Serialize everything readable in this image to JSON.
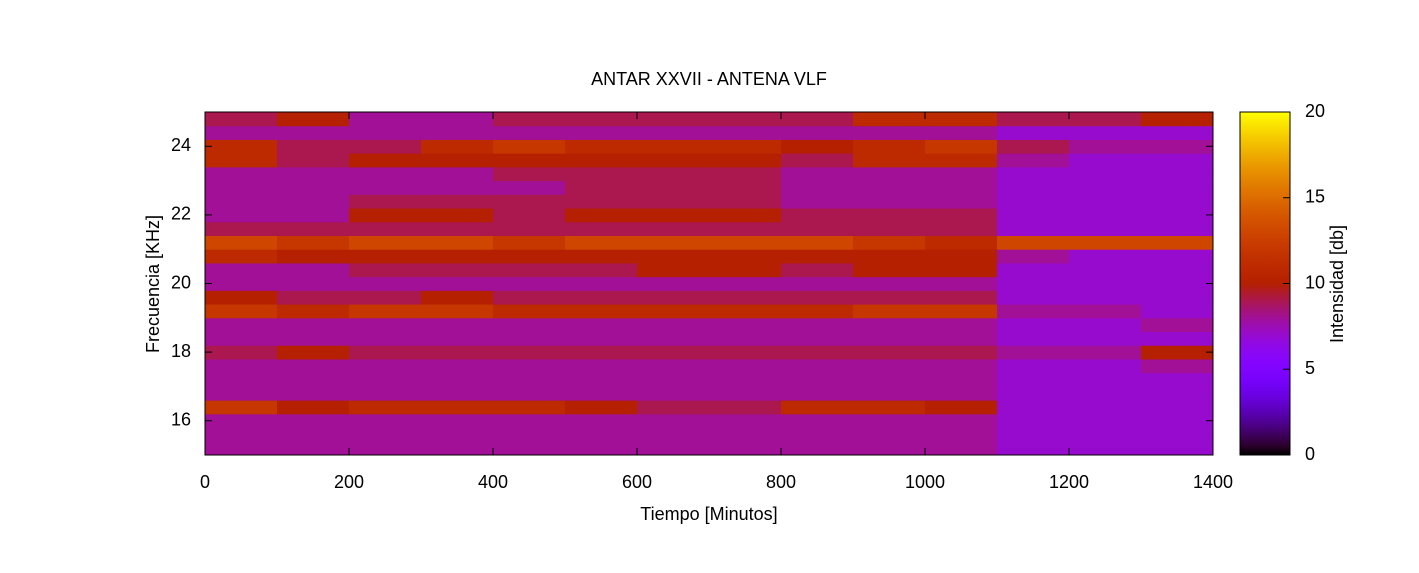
{
  "chart_data": {
    "type": "heatmap",
    "title": "ANTAR XXVII - ANTENA VLF",
    "xlabel": "Tiempo [Minutos]",
    "ylabel": "Frecuencia [KHz]",
    "zlabel": "Intensidad [db]",
    "colormap": "gnuplot",
    "xlim": [
      0,
      1400
    ],
    "xticks": [
      0,
      200,
      400,
      600,
      800,
      1000,
      1200,
      1400
    ],
    "ylim": [
      15,
      25
    ],
    "yticks": [
      16,
      18,
      20,
      22,
      24
    ],
    "zlim": [
      0,
      20
    ],
    "zticks": [
      0,
      5,
      10,
      15,
      20
    ],
    "x": [
      50,
      150,
      250,
      350,
      450,
      550,
      650,
      750,
      850,
      950,
      1050,
      1150,
      1250,
      1350
    ],
    "y": [
      15.2,
      15.6,
      16.0,
      16.4,
      16.8,
      17.2,
      17.6,
      18.0,
      18.4,
      18.8,
      19.2,
      19.6,
      20.0,
      20.4,
      20.8,
      21.2,
      21.6,
      22.0,
      22.4,
      22.8,
      23.2,
      23.6,
      24.0,
      24.4,
      24.8
    ],
    "values": [
      [
        8,
        8,
        8,
        8,
        8,
        8,
        8,
        8,
        8,
        8,
        8,
        7,
        7,
        7
      ],
      [
        8,
        8,
        8,
        8,
        8,
        8,
        8,
        8,
        8,
        8,
        8,
        7,
        7,
        7
      ],
      [
        8,
        8,
        8,
        8,
        8,
        8,
        8,
        8,
        8,
        8,
        8,
        7,
        7,
        7
      ],
      [
        12,
        10,
        11,
        11,
        11,
        10,
        9,
        9,
        11,
        11,
        10,
        7,
        7,
        7
      ],
      [
        8,
        8,
        8,
        8,
        8,
        8,
        8,
        8,
        8,
        8,
        8,
        7,
        7,
        7
      ],
      [
        8,
        8,
        8,
        8,
        8,
        8,
        8,
        8,
        8,
        8,
        8,
        7,
        7,
        7
      ],
      [
        8,
        8,
        8,
        8,
        8,
        8,
        8,
        8,
        8,
        8,
        8,
        7,
        7,
        8
      ],
      [
        9,
        10,
        9,
        9,
        9,
        9,
        9,
        9,
        9,
        9,
        9,
        8,
        8,
        10
      ],
      [
        8,
        8,
        8,
        8,
        8,
        8,
        8,
        8,
        8,
        8,
        8,
        7,
        7,
        7
      ],
      [
        8,
        8,
        8,
        8,
        8,
        8,
        8,
        8,
        8,
        8,
        8,
        7,
        7,
        8
      ],
      [
        12,
        11,
        12,
        12,
        11,
        11,
        11,
        11,
        11,
        12,
        12,
        8,
        8,
        7
      ],
      [
        10,
        9,
        9,
        10,
        9,
        9,
        9,
        9,
        9,
        9,
        9,
        7,
        7,
        7
      ],
      [
        8,
        8,
        8,
        8,
        8,
        8,
        8,
        8,
        8,
        8,
        8,
        7,
        7,
        7
      ],
      [
        8,
        8,
        9,
        9,
        9,
        9,
        10,
        10,
        9,
        10,
        10,
        7,
        7,
        7
      ],
      [
        11,
        10,
        10,
        10,
        10,
        10,
        10,
        10,
        10,
        10,
        10,
        8,
        7,
        7
      ],
      [
        13,
        12,
        13,
        13,
        12,
        13,
        13,
        13,
        13,
        12,
        11,
        13,
        13,
        13
      ],
      [
        9,
        9,
        9,
        9,
        9,
        9,
        9,
        9,
        9,
        9,
        9,
        7,
        7,
        7
      ],
      [
        8,
        8,
        10,
        10,
        9,
        10,
        10,
        10,
        9,
        9,
        9,
        7,
        7,
        7
      ],
      [
        8,
        8,
        9,
        9,
        9,
        9,
        9,
        9,
        8,
        8,
        8,
        7,
        7,
        7
      ],
      [
        8,
        8,
        8,
        8,
        8,
        9,
        9,
        9,
        8,
        8,
        8,
        7,
        7,
        7
      ],
      [
        8,
        8,
        8,
        8,
        9,
        9,
        9,
        9,
        8,
        8,
        8,
        7,
        7,
        7
      ],
      [
        11,
        9,
        10,
        10,
        10,
        10,
        10,
        10,
        9,
        11,
        11,
        8,
        7,
        7
      ],
      [
        11,
        9,
        9,
        11,
        12,
        11,
        11,
        11,
        10,
        11,
        12,
        9,
        8,
        8
      ],
      [
        8,
        8,
        8,
        8,
        8,
        8,
        8,
        8,
        8,
        8,
        8,
        7,
        7,
        7
      ],
      [
        9,
        10,
        8,
        8,
        9,
        9,
        9,
        9,
        9,
        11,
        11,
        9,
        9,
        10
      ]
    ]
  }
}
